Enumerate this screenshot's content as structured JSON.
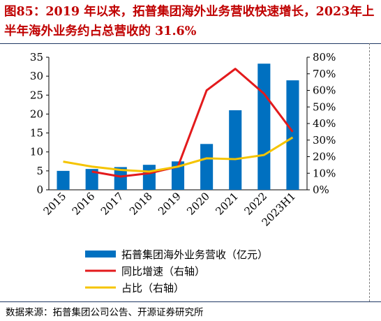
{
  "figure": {
    "title": "图85：2019 年以来，拓普集团海外业务营收快速增长，2023年上半年海外业务约占总营收的 31.6%",
    "source": "数据来源：拓普集团公司公告、开源证券研究所"
  },
  "chart_data": {
    "type": "bar",
    "categories": [
      "2015",
      "2016",
      "2017",
      "2018",
      "2019",
      "2020",
      "2021",
      "2022",
      "2023H1"
    ],
    "series": [
      {
        "name": "拓普集团海外业务营收（亿元）",
        "type": "bar",
        "axis": "left",
        "values": [
          5.0,
          5.5,
          6.0,
          6.6,
          7.5,
          12.1,
          21.0,
          33.3,
          28.9
        ]
      },
      {
        "name": "同比增速（右轴）",
        "type": "line",
        "axis": "right",
        "values": [
          null,
          11,
          8,
          10,
          14,
          60,
          73,
          58,
          35
        ]
      },
      {
        "name": "占比（右轴）",
        "type": "line",
        "axis": "right",
        "values": [
          17,
          14,
          12,
          11,
          14,
          19,
          18.5,
          21,
          31.6
        ]
      }
    ],
    "y_left": {
      "min": 0,
      "max": 35,
      "ticks": [
        "0",
        "5",
        "10",
        "15",
        "20",
        "25",
        "30",
        "35"
      ]
    },
    "y_right": {
      "min": 0,
      "max": 80,
      "ticks": [
        "0%",
        "10%",
        "20%",
        "30%",
        "40%",
        "50%",
        "60%",
        "70%",
        "80%"
      ]
    },
    "colors": {
      "bar": "#0070c0",
      "growth": "#e31a1c",
      "share": "#f5c400"
    },
    "grid": false,
    "legend_position": "bottom"
  }
}
